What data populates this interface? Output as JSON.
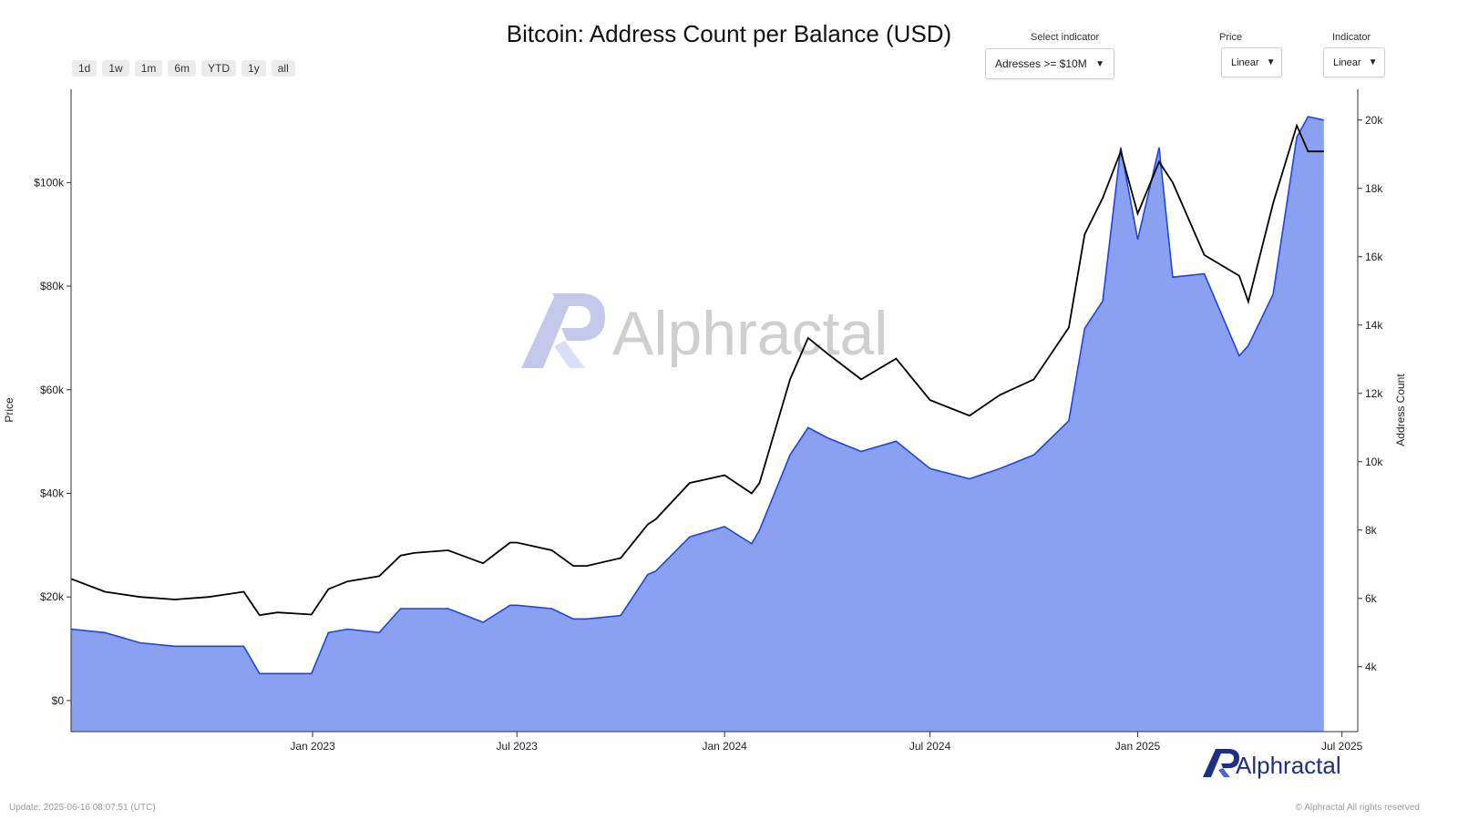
{
  "header": {
    "title": "Bitcoin: Address Count per Balance (USD)",
    "range_buttons": [
      "1d",
      "1w",
      "1m",
      "6m",
      "YTD",
      "1y",
      "all"
    ]
  },
  "controls": {
    "indicator_label": "Select indicator",
    "indicator_value": "Adresses >= $10M",
    "price_scale_label": "Price",
    "price_scale_value": "Linear",
    "indicator_scale_label": "Indicator",
    "indicator_scale_value": "Linear"
  },
  "footer": {
    "update": "Update: 2025-06-16 08:07:51 (UTC)",
    "copyright": "© Alphractal All rights reserved"
  },
  "branding": {
    "watermark": "Alphractal",
    "logo": "Alphractal"
  },
  "colors": {
    "price_line": "#000000",
    "count_line": "#1f45e0",
    "count_fill": "#8aa0f0",
    "brand": "#1f2f86"
  },
  "chart_data": {
    "type": "area",
    "ylabel": "Price",
    "y2label": "Address Count",
    "ylim": [
      -6000,
      118000
    ],
    "y2lim": [
      2100,
      20900
    ],
    "x_ticks": [
      "Jan 2023",
      "Jul 2023",
      "Jan 2024",
      "Jul 2024",
      "Jan 2025",
      "Jul 2025"
    ],
    "y_ticks": [
      "$0",
      "$20k",
      "$40k",
      "$60k",
      "$80k",
      "$100k"
    ],
    "y2_ticks": [
      "4k",
      "6k",
      "8k",
      "10k",
      "12k",
      "14k",
      "16k",
      "18k",
      "20k"
    ],
    "x": [
      "2022-06-01",
      "2022-07-01",
      "2022-08-01",
      "2022-09-01",
      "2022-10-01",
      "2022-11-01",
      "2022-11-15",
      "2022-12-01",
      "2022-12-31",
      "2023-01-15",
      "2023-02-01",
      "2023-03-01",
      "2023-03-20",
      "2023-04-01",
      "2023-05-01",
      "2023-06-01",
      "2023-06-25",
      "2023-07-01",
      "2023-08-01",
      "2023-08-20",
      "2023-09-01",
      "2023-10-01",
      "2023-10-25",
      "2023-11-01",
      "2023-12-01",
      "2024-01-01",
      "2024-01-25",
      "2024-02-01",
      "2024-02-28",
      "2024-03-15",
      "2024-04-01",
      "2024-05-01",
      "2024-06-01",
      "2024-07-01",
      "2024-08-05",
      "2024-09-01",
      "2024-10-01",
      "2024-11-01",
      "2024-11-15",
      "2024-12-01",
      "2024-12-17",
      "2025-01-01",
      "2025-01-20",
      "2025-02-01",
      "2025-03-01",
      "2025-04-01",
      "2025-04-09",
      "2025-05-01",
      "2025-05-22",
      "2025-06-01",
      "2025-06-15"
    ],
    "series": [
      {
        "name": "Price",
        "axis": "left",
        "values": [
          23500,
          21000,
          20000,
          19500,
          20000,
          21000,
          16500,
          17000,
          16600,
          21500,
          23000,
          24000,
          28000,
          28500,
          29000,
          26500,
          30500,
          30500,
          29000,
          26000,
          26000,
          27500,
          34000,
          35000,
          42000,
          43500,
          40000,
          42000,
          62000,
          70000,
          67000,
          62000,
          66000,
          58000,
          55000,
          59000,
          62000,
          72000,
          90000,
          97000,
          106000,
          94000,
          104000,
          100000,
          86000,
          82000,
          77000,
          96000,
          111000,
          106000,
          106000
        ]
      },
      {
        "name": "Address Count",
        "axis": "right",
        "values": [
          5100,
          5000,
          4700,
          4600,
          4600,
          4600,
          3800,
          3800,
          3800,
          5000,
          5100,
          5000,
          5700,
          5700,
          5700,
          5300,
          5800,
          5800,
          5700,
          5400,
          5400,
          5500,
          6700,
          6800,
          7800,
          8100,
          7600,
          8000,
          10200,
          11000,
          10700,
          10300,
          10600,
          9800,
          9500,
          9800,
          10200,
          11200,
          13900,
          14700,
          19200,
          16500,
          19200,
          15400,
          15500,
          13100,
          13400,
          14900,
          19500,
          20100,
          20000
        ]
      }
    ]
  }
}
